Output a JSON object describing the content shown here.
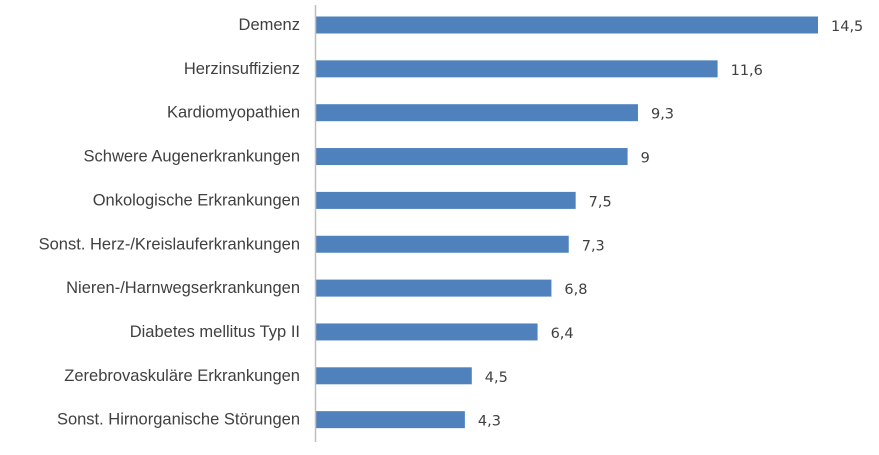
{
  "chart_data": {
    "type": "bar",
    "orientation": "horizontal",
    "title": "",
    "xlabel": "",
    "ylabel": "",
    "categories": [
      "Demenz",
      "Herzinsuffizienz",
      "Kardiomyopathien",
      "Schwere Augenerkrankungen",
      "Onkologische Erkrankungen",
      "Sonst. Herz-/Kreislauferkrankungen",
      "Nieren-/Harnwegserkrankungen",
      "Diabetes mellitus Typ II",
      "Zerebrovaskuläre Erkrankungen",
      "Sonst. Hirnorganische Störungen"
    ],
    "values": [
      14.5,
      11.6,
      9.3,
      9,
      7.5,
      7.3,
      6.8,
      6.4,
      4.5,
      4.3
    ],
    "value_labels": [
      "14,5",
      "11,6",
      "9,3",
      "9",
      "7,5",
      "7,3",
      "6,8",
      "6,4",
      "4,5",
      "4,3"
    ],
    "xlim": [
      0,
      14.5
    ],
    "grid": false,
    "legend": "none",
    "bar_color": "#4f81bd"
  }
}
